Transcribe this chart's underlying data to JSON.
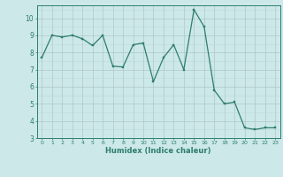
{
  "x": [
    0,
    1,
    2,
    3,
    4,
    5,
    6,
    7,
    8,
    9,
    10,
    11,
    12,
    13,
    14,
    15,
    16,
    17,
    18,
    19,
    20,
    21,
    22,
    23
  ],
  "y": [
    7.7,
    9.0,
    8.9,
    9.0,
    8.8,
    8.4,
    9.0,
    7.2,
    7.15,
    8.45,
    8.55,
    6.3,
    7.7,
    8.45,
    7.0,
    10.5,
    9.5,
    5.8,
    5.0,
    5.1,
    3.6,
    3.5,
    3.6,
    3.6
  ],
  "xlabel": "Humidex (Indice chaleur)",
  "xlim": [
    -0.5,
    23.5
  ],
  "ylim": [
    3,
    10.75
  ],
  "yticks": [
    3,
    4,
    5,
    6,
    7,
    8,
    9,
    10
  ],
  "xticks": [
    0,
    1,
    2,
    3,
    4,
    5,
    6,
    7,
    8,
    9,
    10,
    11,
    12,
    13,
    14,
    15,
    16,
    17,
    18,
    19,
    20,
    21,
    22,
    23
  ],
  "line_color": "#2e7d6e",
  "marker_color": "#2e7d6e",
  "bg_color": "#cce8e8",
  "grid_color": "#aec8c8",
  "grid_color_minor": "#bdd8d8"
}
